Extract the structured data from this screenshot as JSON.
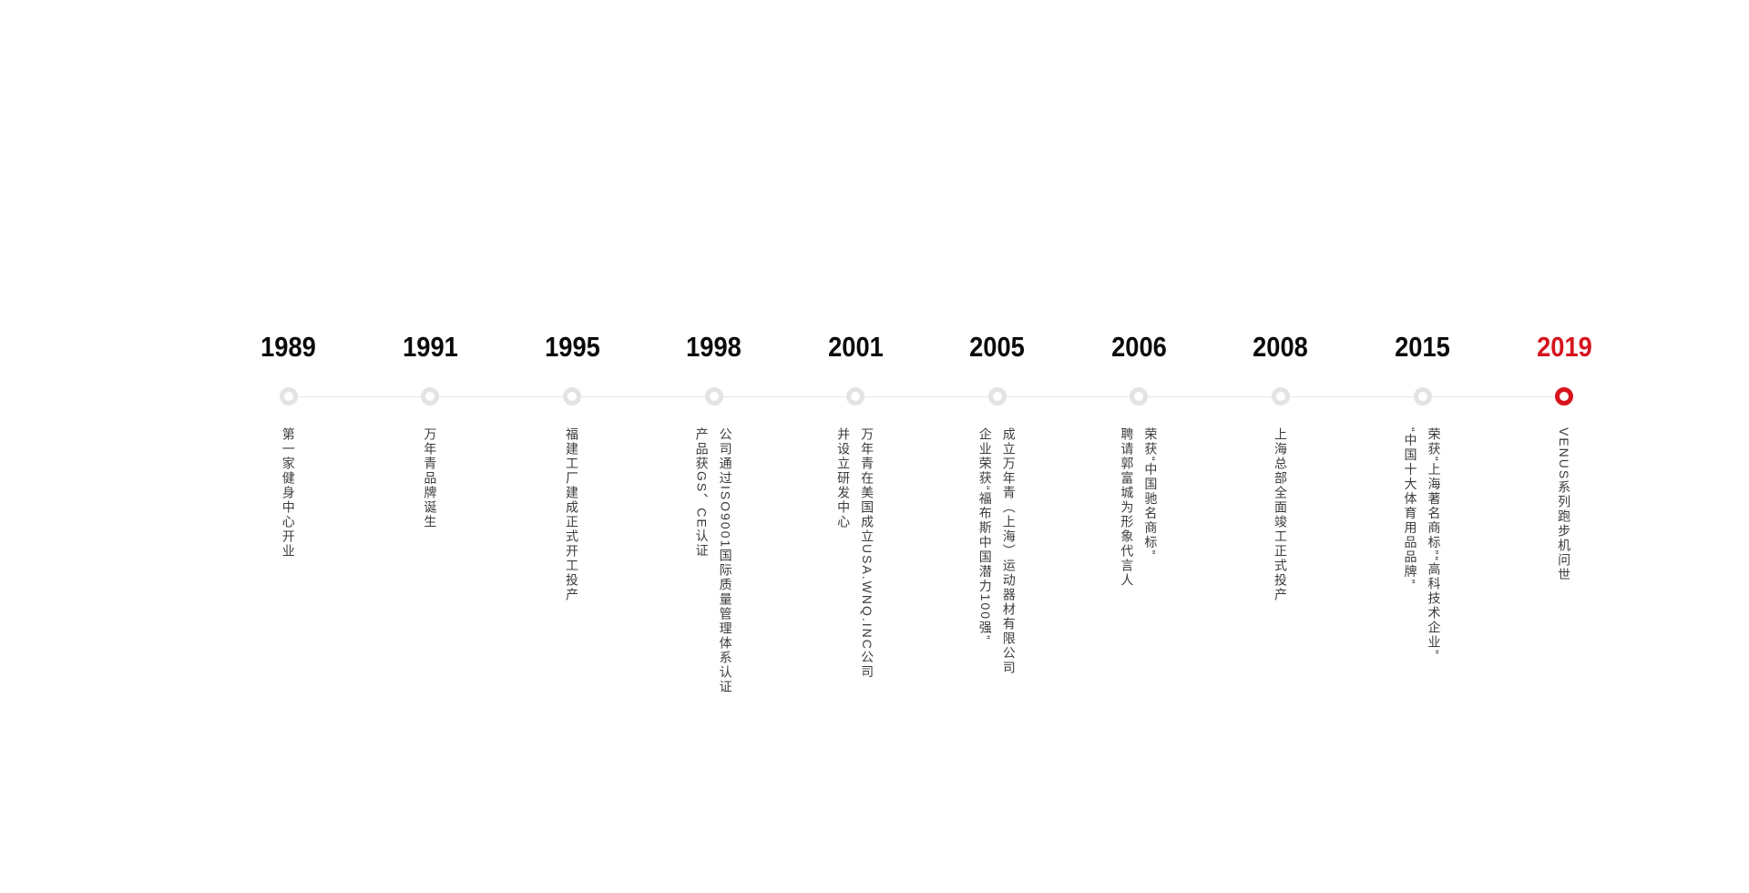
{
  "page": {
    "background": "#ffffff"
  },
  "timeline": {
    "line_color": "#e8e8e8",
    "marker_ring_color": "#e3e3e3",
    "accent_color": "#d7141e",
    "items": [
      {
        "year": "1989",
        "highlight": false,
        "lines": [
          "第一家健身中心开业"
        ]
      },
      {
        "year": "1991",
        "highlight": false,
        "lines": [
          "万年青品牌诞生"
        ]
      },
      {
        "year": "1995",
        "highlight": false,
        "lines": [
          "福建工厂建成正式开工投产"
        ]
      },
      {
        "year": "1998",
        "highlight": false,
        "lines": [
          "公司通过ISO9001国际质量管理体系认证",
          "产品获GS、CE认证"
        ]
      },
      {
        "year": "2001",
        "highlight": false,
        "lines": [
          "万年青在美国成立USA.WNQ.INC公司",
          "并设立研发中心"
        ]
      },
      {
        "year": "2005",
        "highlight": false,
        "lines": [
          "成立万年青（上海）运动器材有限公司",
          "企业荣获“福布斯中国潜力100强”"
        ]
      },
      {
        "year": "2006",
        "highlight": false,
        "lines": [
          "荣获“中国驰名商标”",
          "聘请郭富城为形象代言人"
        ]
      },
      {
        "year": "2008",
        "highlight": false,
        "lines": [
          "上海总部全面竣工正式投产"
        ]
      },
      {
        "year": "2015",
        "highlight": false,
        "lines": [
          "荣获“上海著名商标”“高科技术企业”",
          "“中国十大体育用品品牌”"
        ]
      },
      {
        "year": "2019",
        "highlight": true,
        "lines": [
          "VENUS系列跑步机问世"
        ]
      }
    ]
  }
}
